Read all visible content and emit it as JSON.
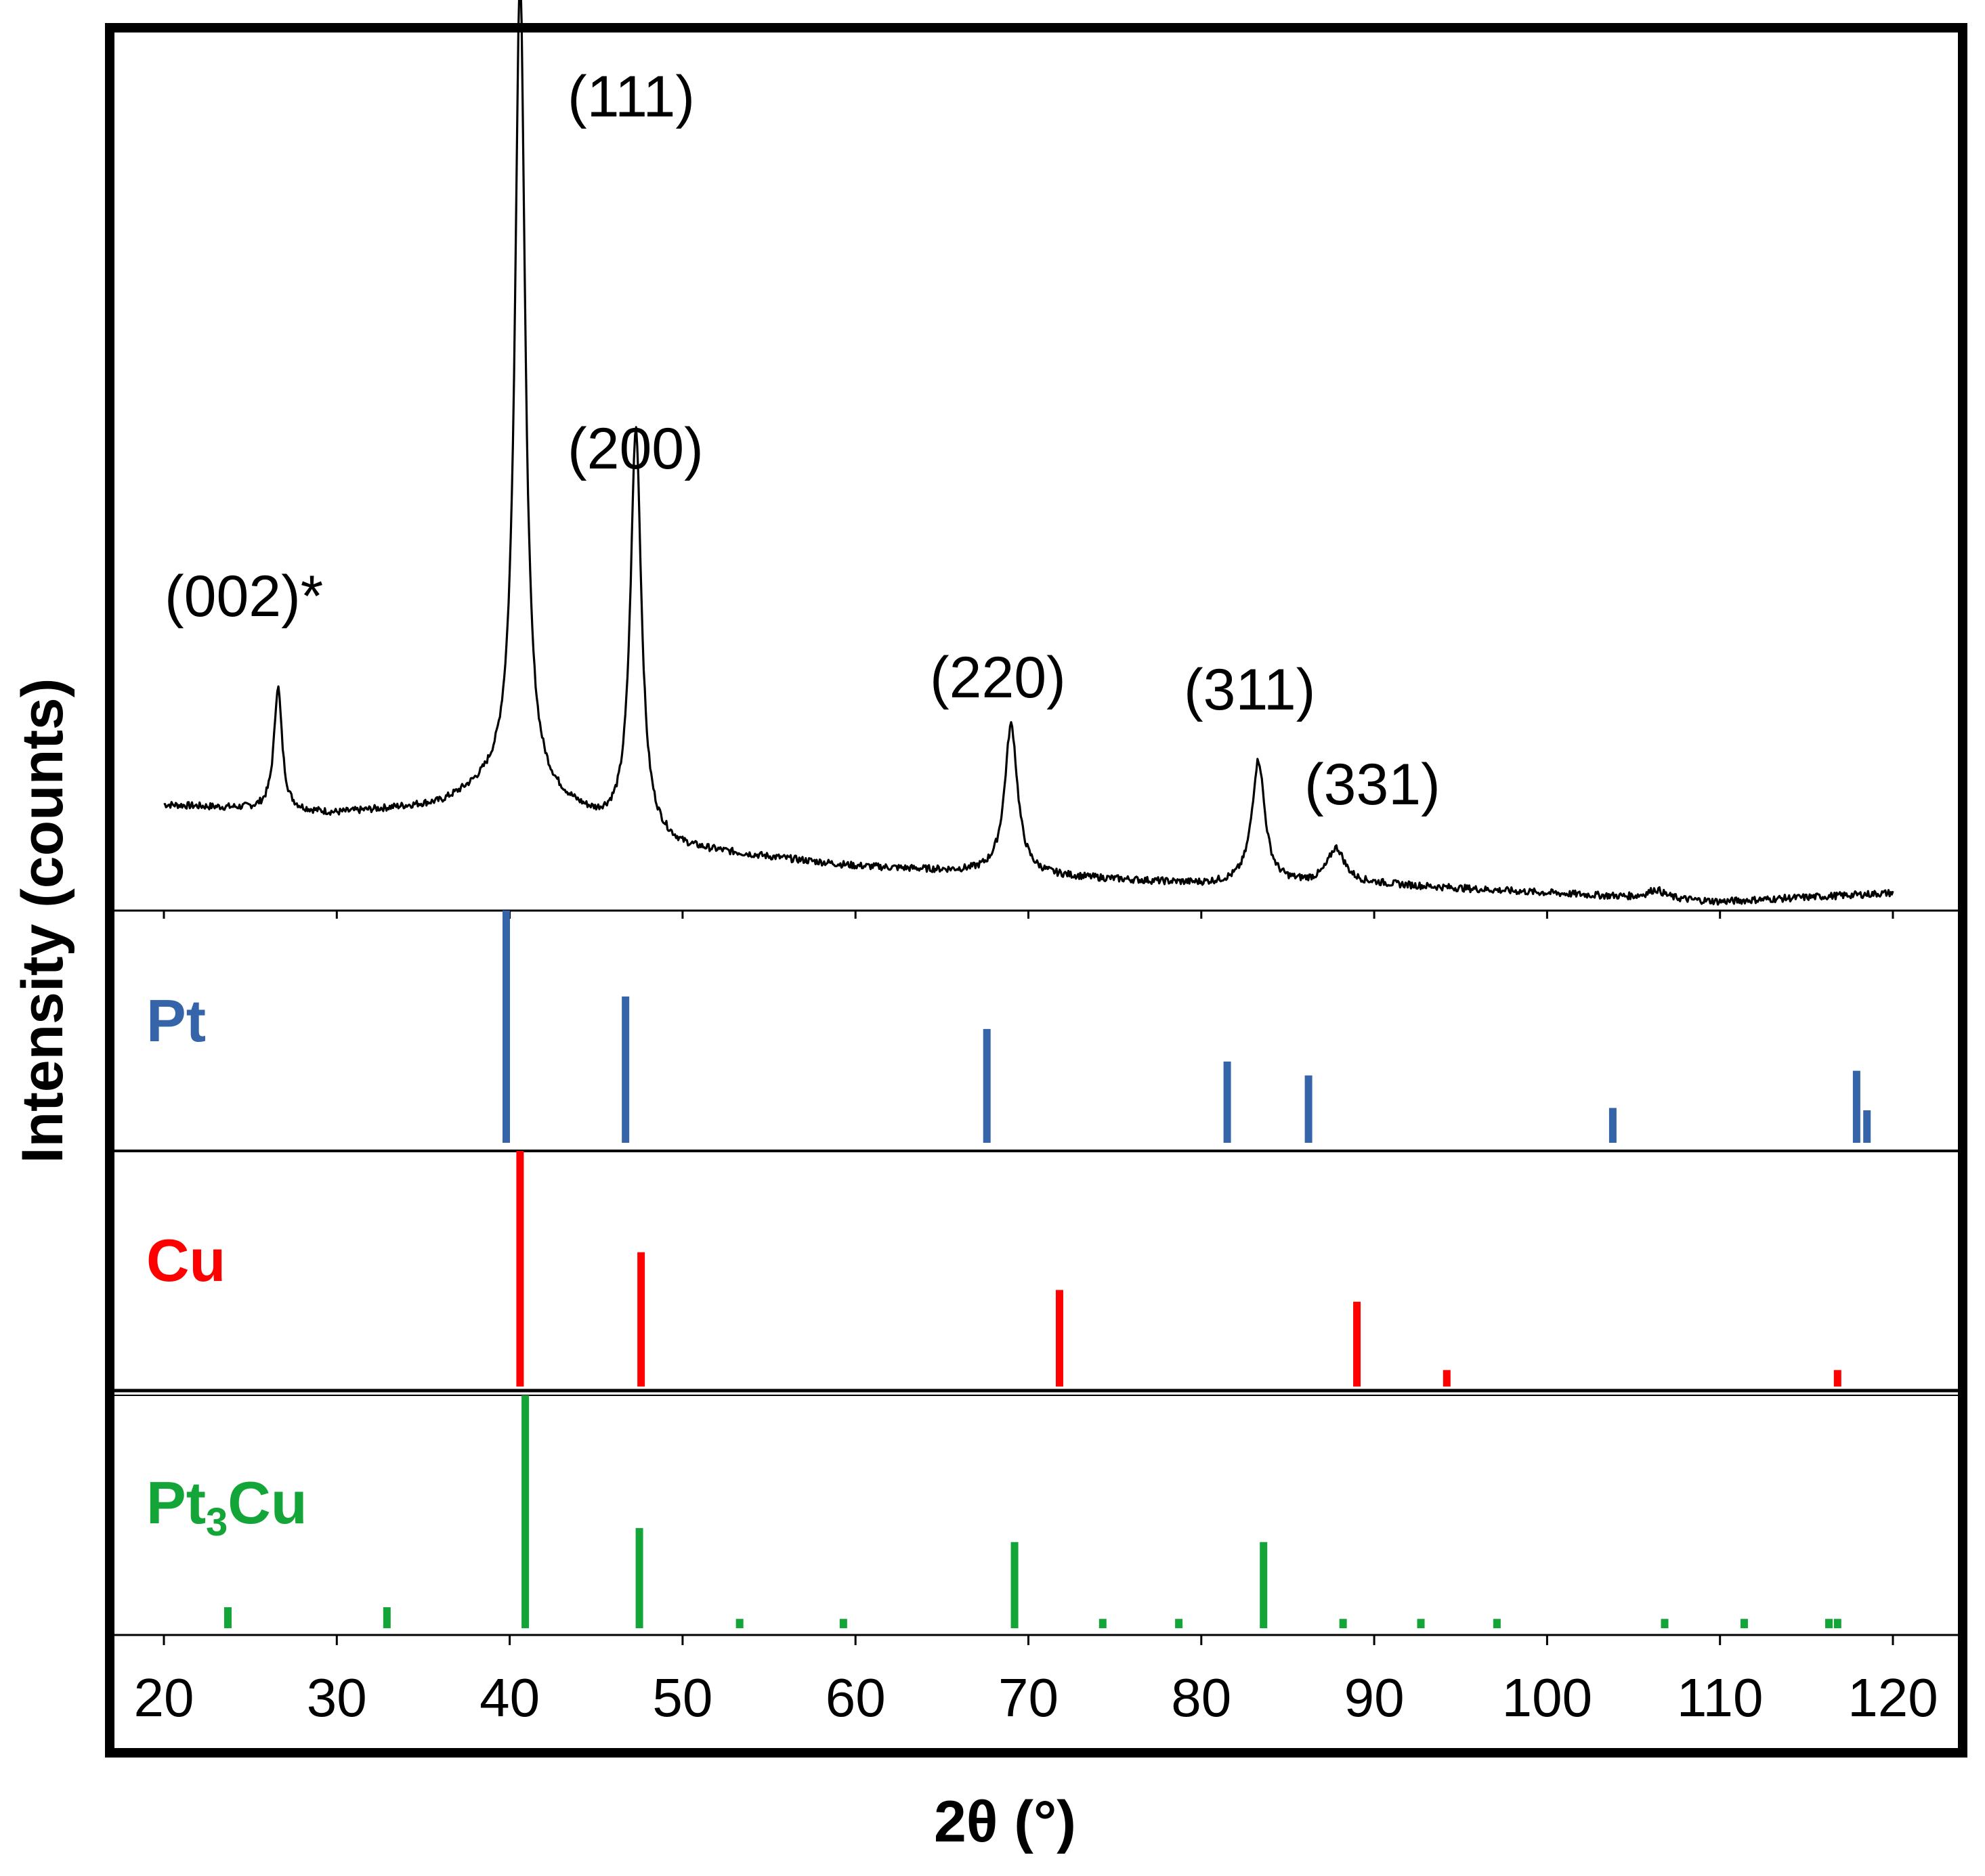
{
  "chart_data": {
    "type": "line",
    "title": "",
    "xlabel": "2θ (°)",
    "ylabel": "Intensity (counts)",
    "xlim": [
      20,
      120
    ],
    "xticks": [
      "20",
      "30",
      "40",
      "50",
      "60",
      "70",
      "80",
      "90",
      "100",
      "110",
      "120"
    ],
    "pattern": {
      "name": "measured",
      "baseline": [
        [
          20,
          0.12
        ],
        [
          30,
          0.11
        ],
        [
          36,
          0.12
        ],
        [
          40,
          0.15
        ],
        [
          45,
          0.1
        ],
        [
          50,
          0.07
        ],
        [
          60,
          0.05
        ],
        [
          70,
          0.04
        ],
        [
          80,
          0.03
        ],
        [
          90,
          0.03
        ],
        [
          100,
          0.02
        ],
        [
          110,
          0.01
        ],
        [
          120,
          0.02
        ]
      ],
      "peaks": [
        {
          "pos": 26.6,
          "height": 0.14,
          "width": 0.28
        },
        {
          "pos": 40.6,
          "height": 0.92,
          "width": 0.35
        },
        {
          "pos": 47.3,
          "height": 0.46,
          "width": 0.38
        },
        {
          "pos": 69.0,
          "height": 0.17,
          "width": 0.45
        },
        {
          "pos": 83.3,
          "height": 0.14,
          "width": 0.45
        },
        {
          "pos": 87.8,
          "height": 0.04,
          "width": 0.6
        },
        {
          "pos": 106.3,
          "height": 0.01,
          "width": 0.6
        }
      ]
    },
    "peak_labels": [
      {
        "text": "(002)*",
        "x": 26.6
      },
      {
        "text": "(111)",
        "x": 40.6
      },
      {
        "text": "(200)",
        "x": 47.3
      },
      {
        "text": "(220)",
        "x": 69.0
      },
      {
        "text": "(311)",
        "x": 83.3
      },
      {
        "text": "(331)",
        "x": 87.8
      }
    ],
    "references": [
      {
        "name": "Pt",
        "label_main": "Pt",
        "label_sub": "",
        "label_tail": "",
        "color": "#3565a8",
        "lines": [
          {
            "x": 39.8,
            "i": 100
          },
          {
            "x": 46.7,
            "i": 63
          },
          {
            "x": 67.6,
            "i": 49
          },
          {
            "x": 81.5,
            "i": 35
          },
          {
            "x": 86.2,
            "i": 29
          },
          {
            "x": 103.8,
            "i": 15
          },
          {
            "x": 117.9,
            "i": 31
          },
          {
            "x": 118.5,
            "i": 14
          }
        ]
      },
      {
        "name": "Cu",
        "label_main": "Cu",
        "label_sub": "",
        "label_tail": "",
        "color": "#ff0000",
        "lines": [
          {
            "x": 40.6,
            "i": 100
          },
          {
            "x": 47.6,
            "i": 57
          },
          {
            "x": 71.8,
            "i": 41
          },
          {
            "x": 89.0,
            "i": 36
          },
          {
            "x": 94.2,
            "i": 7
          },
          {
            "x": 116.8,
            "i": 7
          }
        ]
      },
      {
        "name": "Pt3Cu",
        "label_main": "Pt",
        "label_sub": "3",
        "label_tail": "Cu",
        "color": "#13a538",
        "lines": [
          {
            "x": 23.7,
            "i": 9
          },
          {
            "x": 32.9,
            "i": 9
          },
          {
            "x": 40.9,
            "i": 100
          },
          {
            "x": 47.5,
            "i": 43
          },
          {
            "x": 53.3,
            "i": 4
          },
          {
            "x": 59.3,
            "i": 4
          },
          {
            "x": 69.2,
            "i": 37
          },
          {
            "x": 74.3,
            "i": 4
          },
          {
            "x": 78.7,
            "i": 4
          },
          {
            "x": 83.6,
            "i": 37
          },
          {
            "x": 88.2,
            "i": 4
          },
          {
            "x": 92.7,
            "i": 4
          },
          {
            "x": 97.1,
            "i": 4
          },
          {
            "x": 106.8,
            "i": 4
          },
          {
            "x": 111.4,
            "i": 4
          },
          {
            "x": 116.3,
            "i": 4
          },
          {
            "x": 116.8,
            "i": 4
          }
        ]
      }
    ]
  }
}
